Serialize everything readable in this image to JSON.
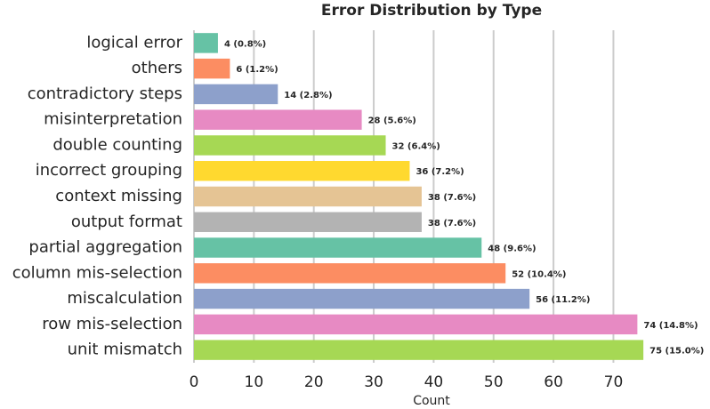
{
  "chart_data": {
    "type": "barh",
    "title": "Error Distribution by Type",
    "xlabel": "Count",
    "categories": [
      "logical error",
      "others",
      "contradictory steps",
      "misinterpretation",
      "double counting",
      "incorrect grouping",
      "context missing",
      "output format",
      "partial aggregation",
      "column mis-selection",
      "miscalculation",
      "row mis-selection",
      "unit mismatch"
    ],
    "values": [
      4,
      6,
      14,
      28,
      32,
      36,
      38,
      38,
      48,
      52,
      56,
      74,
      75
    ],
    "value_labels": [
      "4 (0.8%)",
      "6 (1.2%)",
      "14 (2.8%)",
      "28 (5.6%)",
      "32 (6.4%)",
      "36 (7.2%)",
      "38 (7.6%)",
      "38 (7.6%)",
      "48 (9.6%)",
      "52 (10.4%)",
      "56 (11.2%)",
      "74 (14.8%)",
      "75 (15.0%)"
    ],
    "colors": [
      "#66c2a5",
      "#fc8d62",
      "#8da0cb",
      "#e78ac3",
      "#a6d854",
      "#ffd92f",
      "#e5c494",
      "#b3b3b3",
      "#66c2a5",
      "#fc8d62",
      "#8da0cb",
      "#e78ac3",
      "#a6d854"
    ],
    "xlim": [
      0,
      83
    ],
    "xticks": [
      0,
      10,
      20,
      30,
      40,
      50,
      60,
      70
    ],
    "grid": true
  }
}
